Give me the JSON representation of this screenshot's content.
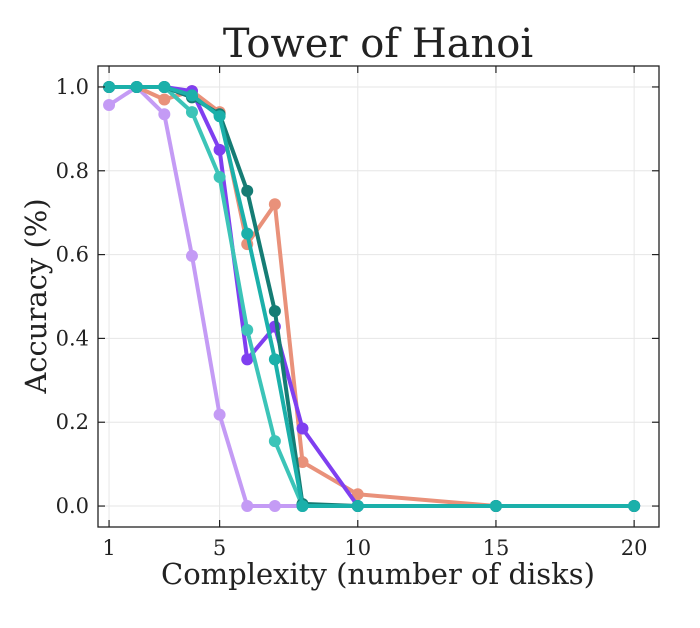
{
  "chart_data": {
    "type": "line",
    "title": "Tower of Hanoi",
    "xlabel": "Complexity (number of disks)",
    "ylabel": "Accuracy (%)",
    "xlim": [
      0.6,
      20.9
    ],
    "ylim": [
      -0.05,
      1.05
    ],
    "xticks": [
      1,
      5,
      10,
      15,
      20
    ],
    "yticks": [
      0.0,
      0.2,
      0.4,
      0.6,
      0.8,
      1.0
    ],
    "ytick_labels": [
      "0.0",
      "0.2",
      "0.4",
      "0.6",
      "0.8",
      "1.0"
    ],
    "grid": true,
    "series": [
      {
        "color": "#c49bf5",
        "x": [
          1,
          2,
          3,
          4,
          5,
          6,
          7,
          8,
          10,
          15,
          20
        ],
        "y": [
          0.957,
          1.0,
          0.935,
          0.597,
          0.218,
          0.0,
          0.0,
          0.0,
          0.0,
          0.0,
          0.0
        ]
      },
      {
        "color": "#e9917a",
        "x": [
          1,
          2,
          3,
          4,
          5,
          6,
          7,
          8,
          10,
          15,
          20
        ],
        "y": [
          1.0,
          1.0,
          0.97,
          0.99,
          0.94,
          0.625,
          0.72,
          0.105,
          0.028,
          0.0,
          0.0
        ]
      },
      {
        "color": "#7f3ff0",
        "x": [
          1,
          2,
          3,
          4,
          5,
          6,
          7,
          8,
          10,
          15,
          20
        ],
        "y": [
          1.0,
          1.0,
          1.0,
          0.99,
          0.85,
          0.35,
          0.428,
          0.185,
          0.0,
          0.0,
          0.0
        ]
      },
      {
        "color": "#3cc4b8",
        "x": [
          1,
          2,
          3,
          4,
          5,
          6,
          7,
          8,
          10,
          15,
          20
        ],
        "y": [
          1.0,
          1.0,
          1.0,
          0.94,
          0.785,
          0.42,
          0.155,
          0.0,
          0.0,
          0.0,
          0.0
        ]
      },
      {
        "color": "#157c74",
        "x": [
          1,
          2,
          3,
          4,
          5,
          6,
          7,
          8,
          10,
          15,
          20
        ],
        "y": [
          1.0,
          1.0,
          1.0,
          0.975,
          0.935,
          0.752,
          0.465,
          0.005,
          0.0,
          0.0,
          0.0
        ]
      },
      {
        "color": "#1bb0aa",
        "x": [
          1,
          2,
          3,
          4,
          5,
          6,
          7,
          8,
          10,
          15,
          20
        ],
        "y": [
          1.0,
          1.0,
          1.0,
          0.98,
          0.93,
          0.65,
          0.35,
          0.0,
          0.0,
          0.0,
          0.0
        ]
      }
    ]
  }
}
